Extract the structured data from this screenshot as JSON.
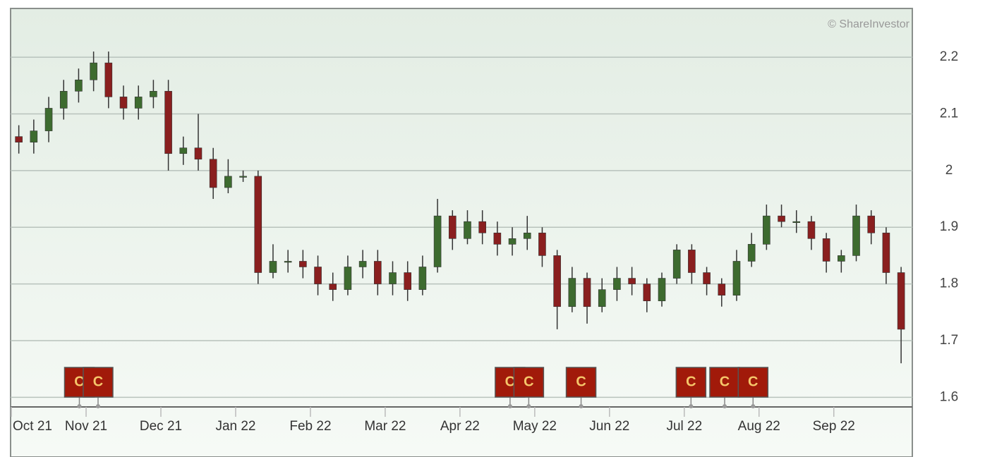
{
  "chart_data": {
    "type": "candlestick",
    "annotation": "© ShareInvestor",
    "x": [
      0.1,
      0.3,
      0.5,
      0.7,
      0.9,
      1.1,
      1.3,
      1.5,
      1.7,
      1.9,
      2.1,
      2.3,
      2.5,
      2.7,
      2.9,
      3.1,
      3.3,
      3.5,
      3.7,
      3.9,
      4.1,
      4.3,
      4.5,
      4.7,
      4.9,
      5.1,
      5.3,
      5.5,
      5.7,
      5.9,
      6.1,
      6.3,
      6.5,
      6.7,
      6.9,
      7.1,
      7.3,
      7.5,
      7.7,
      7.9,
      8.1,
      8.3,
      8.5,
      8.7,
      8.9,
      9.1,
      9.3,
      9.5,
      9.7,
      9.9,
      10.1,
      10.3,
      10.5,
      10.7,
      10.9,
      11.1,
      11.3,
      11.5,
      11.7,
      11.9
    ],
    "open": [
      2.06,
      2.05,
      2.07,
      2.11,
      2.14,
      2.16,
      2.19,
      2.13,
      2.11,
      2.13,
      2.14,
      2.03,
      2.04,
      2.02,
      1.97,
      1.99,
      1.99,
      1.82,
      1.84,
      1.84,
      1.83,
      1.8,
      1.79,
      1.83,
      1.84,
      1.8,
      1.82,
      1.79,
      1.83,
      1.92,
      1.88,
      1.91,
      1.89,
      1.87,
      1.88,
      1.89,
      1.85,
      1.76,
      1.81,
      1.76,
      1.79,
      1.81,
      1.8,
      1.77,
      1.81,
      1.86,
      1.82,
      1.8,
      1.78,
      1.84,
      1.87,
      1.92,
      1.91,
      1.91,
      1.88,
      1.84,
      1.85,
      1.92,
      1.89,
      1.82
    ],
    "high": [
      2.08,
      2.09,
      2.13,
      2.16,
      2.18,
      2.21,
      2.21,
      2.15,
      2.15,
      2.16,
      2.16,
      2.06,
      2.1,
      2.04,
      2.02,
      2.0,
      2.0,
      1.87,
      1.86,
      1.86,
      1.85,
      1.82,
      1.85,
      1.86,
      1.86,
      1.84,
      1.84,
      1.85,
      1.95,
      1.93,
      1.93,
      1.93,
      1.91,
      1.9,
      1.92,
      1.9,
      1.86,
      1.83,
      1.82,
      1.81,
      1.83,
      1.83,
      1.81,
      1.82,
      1.87,
      1.87,
      1.83,
      1.81,
      1.86,
      1.89,
      1.94,
      1.94,
      1.93,
      1.92,
      1.89,
      1.86,
      1.94,
      1.93,
      1.9,
      1.83
    ],
    "low": [
      2.03,
      2.03,
      2.05,
      2.09,
      2.12,
      2.14,
      2.11,
      2.09,
      2.09,
      2.11,
      2.0,
      2.01,
      2.0,
      1.95,
      1.96,
      1.98,
      1.8,
      1.81,
      1.82,
      1.81,
      1.78,
      1.77,
      1.78,
      1.81,
      1.78,
      1.78,
      1.77,
      1.78,
      1.82,
      1.86,
      1.87,
      1.87,
      1.85,
      1.85,
      1.86,
      1.83,
      1.72,
      1.75,
      1.73,
      1.75,
      1.77,
      1.78,
      1.75,
      1.76,
      1.8,
      1.8,
      1.78,
      1.76,
      1.77,
      1.83,
      1.86,
      1.9,
      1.89,
      1.86,
      1.82,
      1.82,
      1.84,
      1.87,
      1.8,
      1.66
    ],
    "close": [
      2.05,
      2.07,
      2.11,
      2.14,
      2.16,
      2.19,
      2.13,
      2.11,
      2.13,
      2.14,
      2.03,
      2.04,
      2.02,
      1.97,
      1.99,
      1.99,
      1.82,
      1.84,
      1.84,
      1.83,
      1.8,
      1.79,
      1.83,
      1.84,
      1.8,
      1.82,
      1.79,
      1.83,
      1.92,
      1.88,
      1.91,
      1.89,
      1.87,
      1.88,
      1.89,
      1.85,
      1.76,
      1.81,
      1.76,
      1.79,
      1.81,
      1.8,
      1.77,
      1.81,
      1.86,
      1.82,
      1.8,
      1.78,
      1.84,
      1.87,
      1.92,
      1.91,
      1.91,
      1.88,
      1.84,
      1.85,
      1.92,
      1.89,
      1.82,
      1.72
    ],
    "up_color": "#3d6b2f",
    "down_color": "#8a1f1f",
    "events": [
      {
        "x": 0.91,
        "label": "C"
      },
      {
        "x": 1.16,
        "label": "C"
      },
      {
        "x": 6.67,
        "label": "C"
      },
      {
        "x": 6.92,
        "label": "C"
      },
      {
        "x": 7.62,
        "label": "C"
      },
      {
        "x": 9.09,
        "label": "C"
      },
      {
        "x": 9.54,
        "label": "C"
      },
      {
        "x": 9.92,
        "label": "C"
      }
    ],
    "event_color": "#a11a0a",
    "xlim": [
      -0.01,
      12.05
    ],
    "xticks": [
      {
        "value": 0,
        "label": "Oct 21"
      },
      {
        "value": 1,
        "label": "Nov 21"
      },
      {
        "value": 2,
        "label": "Dec 21"
      },
      {
        "value": 3,
        "label": "Jan 22"
      },
      {
        "value": 4,
        "label": "Feb 22"
      },
      {
        "value": 5,
        "label": "Mar 22"
      },
      {
        "value": 6,
        "label": "Apr 22"
      },
      {
        "value": 7,
        "label": "May 22"
      },
      {
        "value": 8,
        "label": "Jun 22"
      },
      {
        "value": 9,
        "label": "Jul 22"
      },
      {
        "value": 10,
        "label": "Aug 22"
      },
      {
        "value": 11,
        "label": "Sep 22"
      }
    ],
    "ylim": [
      1.583,
      2.286
    ],
    "yticks": [
      1.6,
      1.7,
      1.8,
      1.9,
      2,
      2.1,
      2.2
    ],
    "grid": true
  }
}
